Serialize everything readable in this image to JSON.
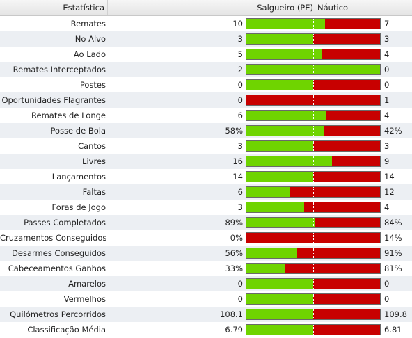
{
  "header": {
    "stat": "Estatística",
    "home": "Salgueiro (PE)",
    "away": "Náutico"
  },
  "colors": {
    "home": "#6fd400",
    "away": "#c80000"
  },
  "rows": [
    {
      "label": "Remates",
      "home": "10",
      "away": "7",
      "home_share": 0.59
    },
    {
      "label": "No Alvo",
      "home": "3",
      "away": "3",
      "home_share": 0.5
    },
    {
      "label": "Ao Lado",
      "home": "5",
      "away": "4",
      "home_share": 0.56
    },
    {
      "label": "Remates Interceptados",
      "home": "2",
      "away": "0",
      "home_share": 1.0
    },
    {
      "label": "Postes",
      "home": "0",
      "away": "0",
      "home_share": 0.5
    },
    {
      "label": "Oportunidades Flagrantes",
      "home": "0",
      "away": "1",
      "home_share": 0.0
    },
    {
      "label": "Remates de Longe",
      "home": "6",
      "away": "4",
      "home_share": 0.6
    },
    {
      "label": "Posse de Bola",
      "home": "58%",
      "away": "42%",
      "home_share": 0.58
    },
    {
      "label": "Cantos",
      "home": "3",
      "away": "3",
      "home_share": 0.5
    },
    {
      "label": "Livres",
      "home": "16",
      "away": "9",
      "home_share": 0.64
    },
    {
      "label": "Lançamentos",
      "home": "14",
      "away": "14",
      "home_share": 0.5
    },
    {
      "label": "Faltas",
      "home": "6",
      "away": "12",
      "home_share": 0.33
    },
    {
      "label": "Foras de Jogo",
      "home": "3",
      "away": "4",
      "home_share": 0.43
    },
    {
      "label": "Passes Completados",
      "home": "89%",
      "away": "84%",
      "home_share": 0.51
    },
    {
      "label": "Cruzamentos Conseguidos",
      "home": "0%",
      "away": "14%",
      "home_share": 0.0
    },
    {
      "label": "Desarmes Conseguidos",
      "home": "56%",
      "away": "91%",
      "home_share": 0.38
    },
    {
      "label": "Cabeceamentos Ganhos",
      "home": "33%",
      "away": "81%",
      "home_share": 0.29
    },
    {
      "label": "Amarelos",
      "home": "0",
      "away": "0",
      "home_share": 0.5
    },
    {
      "label": "Vermelhos",
      "home": "0",
      "away": "0",
      "home_share": 0.5
    },
    {
      "label": "Quilómetros Percorridos",
      "home": "108.1",
      "away": "109.8",
      "home_share": 0.5
    },
    {
      "label": "Classificação Média",
      "home": "6.79",
      "away": "6.81",
      "home_share": 0.5
    }
  ]
}
